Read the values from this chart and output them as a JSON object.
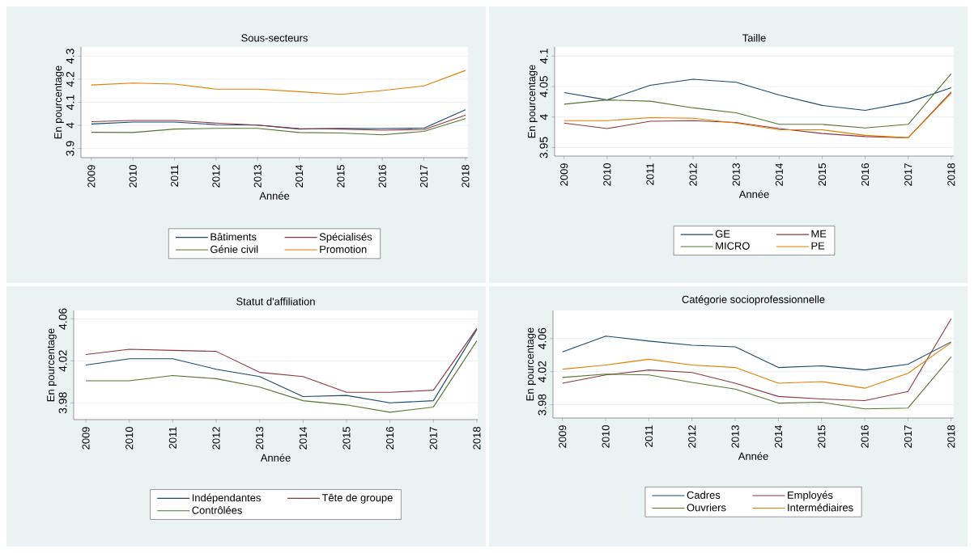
{
  "chart_data": [
    {
      "type": "line",
      "title": "Sous-secteurs",
      "xlabel": "Année",
      "ylabel": "En pourcentage",
      "categories": [
        "2009",
        "2010",
        "2011",
        "2012",
        "2013",
        "2014",
        "2015",
        "2016",
        "2017",
        "2018"
      ],
      "ylim": [
        3.86,
        4.34
      ],
      "yticks": [
        3.9,
        4,
        4.1,
        4.2,
        4.3
      ],
      "grid": "y",
      "legend": "bottom",
      "series": [
        {
          "name": "Bâtiments",
          "color": "#1a476f",
          "values": [
            4.006,
            4.014,
            4.014,
            4.003,
            4.001,
            3.984,
            3.987,
            3.986,
            3.988,
            4.068
          ]
        },
        {
          "name": "Spécialisés",
          "color": "#90353b",
          "values": [
            4.016,
            4.021,
            4.021,
            4.01,
            4.001,
            3.986,
            3.984,
            3.979,
            3.982,
            4.044
          ]
        },
        {
          "name": "Génie civil",
          "color": "#55752f",
          "values": [
            3.97,
            3.969,
            3.984,
            3.987,
            3.987,
            3.969,
            3.967,
            3.959,
            3.974,
            4.029
          ]
        },
        {
          "name": "Promotion",
          "color": "#e37e00",
          "values": [
            4.175,
            4.183,
            4.179,
            4.157,
            4.157,
            4.146,
            4.134,
            4.151,
            4.171,
            4.238
          ]
        }
      ]
    },
    {
      "type": "line",
      "title": "Taille",
      "xlabel": "Année",
      "ylabel": "En pourcentage",
      "categories": [
        "2009",
        "2010",
        "2011",
        "2012",
        "2013",
        "2014",
        "2015",
        "2016",
        "2017",
        "2018"
      ],
      "ylim": [
        3.936,
        4.115
      ],
      "yticks": [
        3.95,
        4,
        4.05,
        4.1
      ],
      "grid": "y",
      "legend": "bottom",
      "series": [
        {
          "name": "GE",
          "color": "#1a476f",
          "values": [
            4.04,
            4.028,
            4.052,
            4.062,
            4.057,
            4.036,
            4.019,
            4.011,
            4.024,
            4.048
          ]
        },
        {
          "name": "ME",
          "color": "#90353b",
          "values": [
            3.99,
            3.981,
            3.993,
            3.994,
            3.991,
            3.981,
            3.973,
            3.968,
            3.966,
            4.041
          ]
        },
        {
          "name": "MICRO",
          "color": "#55752f",
          "values": [
            4.021,
            4.028,
            4.026,
            4.015,
            4.007,
            3.988,
            3.988,
            3.982,
            3.988,
            4.071
          ]
        },
        {
          "name": "PE",
          "color": "#e37e00",
          "values": [
            3.994,
            3.994,
            3.999,
            3.998,
            3.99,
            3.979,
            3.979,
            3.97,
            3.966,
            4.039
          ]
        }
      ]
    },
    {
      "type": "line",
      "title": "Statut d'affiliation",
      "xlabel": "Année",
      "ylabel": "En pourcentage",
      "categories": [
        "2009",
        "2010",
        "2011",
        "2012",
        "2013",
        "2014",
        "2015",
        "2016",
        "2017",
        "2018"
      ],
      "ylim": [
        3.964,
        4.068
      ],
      "yticks": [
        3.98,
        4.02,
        4.06
      ],
      "grid": "y",
      "legend": "bottom",
      "series": [
        {
          "name": "Indépendantes",
          "color": "#1a476f",
          "values": [
            4.016,
            4.022,
            4.022,
            4.012,
            4.005,
            3.986,
            3.987,
            3.98,
            3.982,
            4.05
          ]
        },
        {
          "name": "Tête de groupe",
          "color": "#90353b",
          "values": [
            4.026,
            4.031,
            4.03,
            4.029,
            4.009,
            4.005,
            3.99,
            3.99,
            3.992,
            4.051
          ]
        },
        {
          "name": "Contrôlées",
          "color": "#55752f",
          "values": [
            4.001,
            4.001,
            4.006,
            4.003,
            3.995,
            3.982,
            3.978,
            3.971,
            3.976,
            4.039
          ]
        }
      ]
    },
    {
      "type": "line",
      "title": "Catégorie socioprofessionnelle",
      "xlabel": "Année",
      "ylabel": "En pourcentage",
      "categories": [
        "2009",
        "2010",
        "2011",
        "2012",
        "2013",
        "2014",
        "2015",
        "2016",
        "2017",
        "2018"
      ],
      "ylim": [
        3.964,
        4.094
      ],
      "yticks": [
        3.98,
        4.02,
        4.06
      ],
      "grid": "y",
      "legend": "bottom",
      "series": [
        {
          "name": "Cadres",
          "color": "#1a476f",
          "values": [
            4.044,
            4.063,
            4.057,
            4.052,
            4.05,
            4.025,
            4.027,
            4.022,
            4.029,
            4.056
          ]
        },
        {
          "name": "Employés",
          "color": "#90353b",
          "values": [
            4.006,
            4.016,
            4.022,
            4.019,
            4.006,
            3.99,
            3.987,
            3.985,
            3.996,
            4.084
          ]
        },
        {
          "name": "Ouvriers",
          "color": "#55752f",
          "values": [
            4.013,
            4.017,
            4.016,
            4.007,
            3.999,
            3.982,
            3.983,
            3.975,
            3.976,
            4.038
          ]
        },
        {
          "name": "Intermédiaires",
          "color": "#e37e00",
          "values": [
            4.023,
            4.028,
            4.035,
            4.028,
            4.025,
            4.006,
            4.008,
            4.0,
            4.018,
            4.055
          ]
        }
      ]
    }
  ]
}
